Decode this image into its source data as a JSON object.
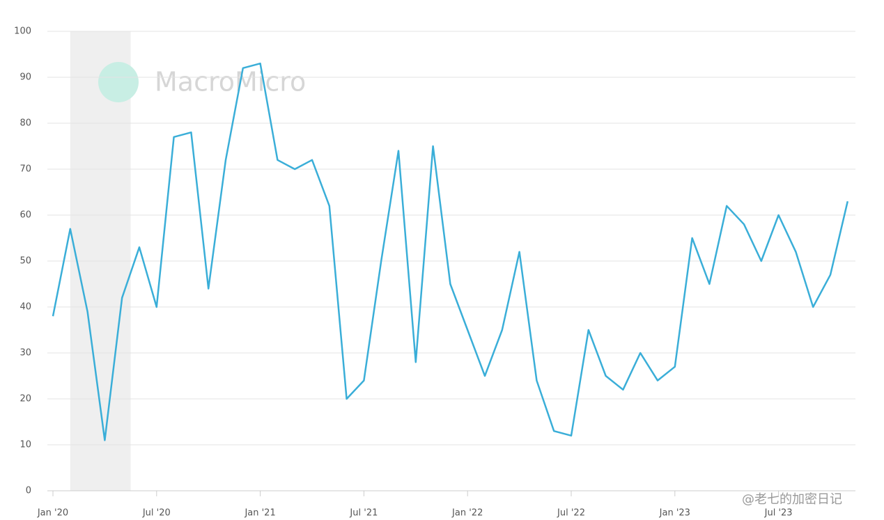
{
  "chart_data": {
    "type": "line",
    "watermark": "MacroMicro",
    "credit": "@老七的加密日记",
    "band": [
      "2020-02",
      "2020-05"
    ],
    "x": [
      "2020-01",
      "2020-02",
      "2020-03",
      "2020-04",
      "2020-05",
      "2020-06",
      "2020-07",
      "2020-08",
      "2020-09",
      "2020-10",
      "2020-11",
      "2020-12",
      "2021-01",
      "2021-02",
      "2021-03",
      "2021-04",
      "2021-05",
      "2021-06",
      "2021-07",
      "2021-08",
      "2021-09",
      "2021-10",
      "2021-11",
      "2021-12",
      "2022-01",
      "2022-02",
      "2022-03",
      "2022-04",
      "2022-05",
      "2022-06",
      "2022-07",
      "2022-08",
      "2022-09",
      "2022-10",
      "2022-11",
      "2022-12",
      "2023-01",
      "2023-02",
      "2023-03",
      "2023-04",
      "2023-05",
      "2023-06",
      "2023-07",
      "2023-08",
      "2023-09",
      "2023-10",
      "2023-11"
    ],
    "series": [
      {
        "color": "#3aaed8",
        "values": [
          38,
          57,
          39,
          11,
          42,
          53,
          40,
          77,
          78,
          44,
          72,
          92,
          93,
          72,
          70,
          72,
          62,
          20,
          24,
          50,
          74,
          28,
          75,
          45,
          35,
          25,
          35,
          52,
          24,
          13,
          12,
          35,
          25,
          22,
          30,
          24,
          27,
          55,
          45,
          62,
          58,
          50,
          60,
          52,
          40,
          47,
          63
        ]
      }
    ],
    "xticks": [
      {
        "value": "2020-01",
        "label": "Jan '20"
      },
      {
        "value": "2020-07",
        "label": "Jul '20"
      },
      {
        "value": "2021-01",
        "label": "Jan '21"
      },
      {
        "value": "2021-07",
        "label": "Jul '21"
      },
      {
        "value": "2022-01",
        "label": "Jan '22"
      },
      {
        "value": "2022-07",
        "label": "Jul '22"
      },
      {
        "value": "2023-01",
        "label": "Jan '23"
      },
      {
        "value": "2023-07",
        "label": "Jul '23"
      }
    ],
    "ylim": [
      0,
      100
    ],
    "yticks": [
      0,
      10,
      20,
      30,
      40,
      50,
      60,
      70,
      80,
      90,
      100
    ],
    "grid": true
  }
}
